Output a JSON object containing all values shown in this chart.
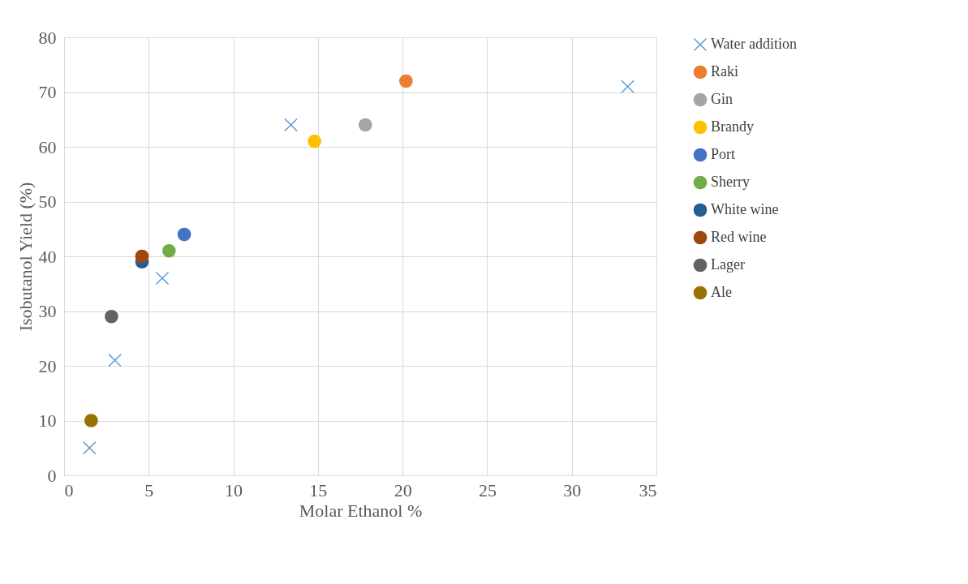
{
  "chart_data": {
    "type": "scatter",
    "xlabel": "Molar Ethanol %",
    "ylabel": "Isobutanol Yield (%)",
    "xlim": [
      0,
      35
    ],
    "xticks": [
      0,
      5,
      10,
      15,
      20,
      25,
      30,
      35
    ],
    "ylim": [
      0,
      80
    ],
    "yticks": [
      0,
      10,
      20,
      30,
      40,
      50,
      60,
      70,
      80
    ],
    "grid": true,
    "legend": "right",
    "series": [
      {
        "name": "Water addition",
        "color": "#5b9bd5",
        "marker": "cross",
        "x": [
          1.5,
          3.0,
          5.8,
          13.4,
          33.3
        ],
        "values": [
          5,
          21,
          36,
          64,
          71
        ]
      },
      {
        "name": "Raki",
        "color": "#ed7d31",
        "marker": "circle",
        "x": [
          20.2
        ],
        "values": [
          72
        ]
      },
      {
        "name": "Gin",
        "color": "#a5a5a5",
        "marker": "circle",
        "x": [
          17.8
        ],
        "values": [
          64
        ]
      },
      {
        "name": "Brandy",
        "color": "#ffc000",
        "marker": "circle",
        "x": [
          14.8
        ],
        "values": [
          61
        ]
      },
      {
        "name": "Port",
        "color": "#4472c4",
        "marker": "circle",
        "x": [
          7.1
        ],
        "values": [
          44
        ]
      },
      {
        "name": "Sherry",
        "color": "#70ad47",
        "marker": "circle",
        "x": [
          6.2
        ],
        "values": [
          41
        ]
      },
      {
        "name": "White wine",
        "color": "#255e91",
        "marker": "circle",
        "x": [
          4.6
        ],
        "values": [
          39
        ]
      },
      {
        "name": "Red wine",
        "color": "#9e480e",
        "marker": "circle",
        "x": [
          4.6
        ],
        "values": [
          40
        ]
      },
      {
        "name": "Lager",
        "color": "#636363",
        "marker": "circle",
        "x": [
          2.8
        ],
        "values": [
          29
        ]
      },
      {
        "name": "Ale",
        "color": "#997300",
        "marker": "circle",
        "x": [
          1.6
        ],
        "values": [
          10
        ]
      }
    ]
  }
}
